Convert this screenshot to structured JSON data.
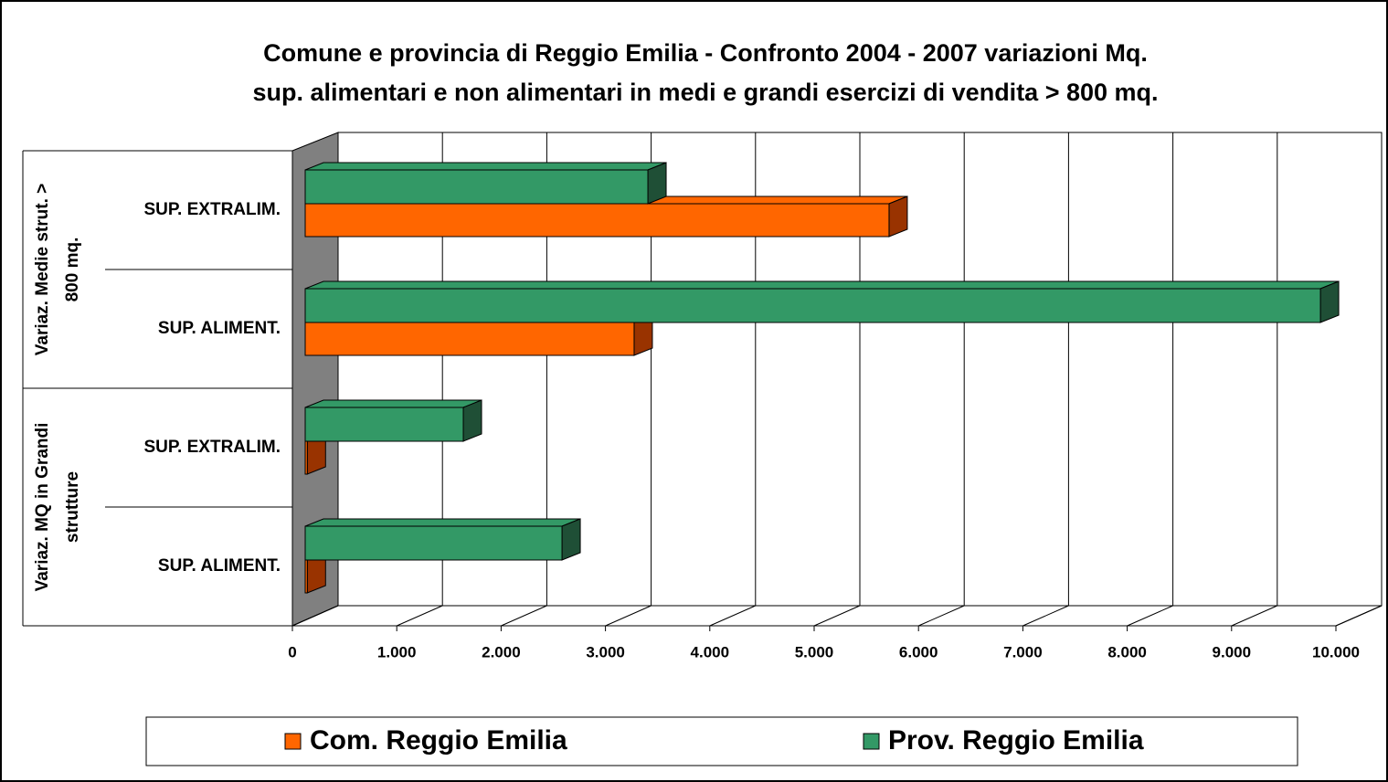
{
  "chart_data": {
    "type": "bar3d_horizontal",
    "title": [
      "Comune e provincia di Reggio Emilia - Confronto 2004 - 2007  variazioni Mq.",
      "sup. alimentari e non alimentari in medi e grandi esercizi di vendita > 800 mq."
    ],
    "categories": [
      "SUP. EXTRALIM.",
      "SUP. ALIMENT.",
      "SUP. EXTRALIM.",
      "SUP. ALIMENT."
    ],
    "groups": [
      {
        "label_lines": [
          "Variaz. Medie strut. >",
          "800 mq."
        ],
        "span": [
          0,
          1
        ]
      },
      {
        "label_lines": [
          "Variaz. MQ in Grandi",
          "strutture"
        ],
        "span": [
          2,
          3
        ]
      }
    ],
    "series": [
      {
        "name": "Com. Reggio Emilia",
        "color": "#ff6600",
        "side_color": "#993300",
        "values": [
          5595,
          3152,
          20,
          20
        ]
      },
      {
        "name": "Prov. Reggio Emilia",
        "color": "#339966",
        "side_color": "#1f4f36",
        "values": [
          3284,
          9729,
          1515,
          2461
        ]
      }
    ],
    "xlim": [
      0,
      10000
    ],
    "xticks": [
      0,
      {
        "value": 1000,
        "label": "1.000"
      },
      {
        "value": 2000,
        "label": "2.000"
      },
      {
        "value": 3000,
        "label": "3.000"
      },
      {
        "value": 4000,
        "label": "4.000"
      },
      {
        "value": 5000,
        "label": "5.000"
      },
      {
        "value": 6000,
        "label": "6.000"
      },
      {
        "value": 7000,
        "label": "7.000"
      },
      {
        "value": 8000,
        "label": "8.000"
      },
      {
        "value": 9000,
        "label": "9.000"
      },
      {
        "value": 10000,
        "label": "10.000"
      }
    ],
    "grid": true,
    "legend": "bottom"
  }
}
